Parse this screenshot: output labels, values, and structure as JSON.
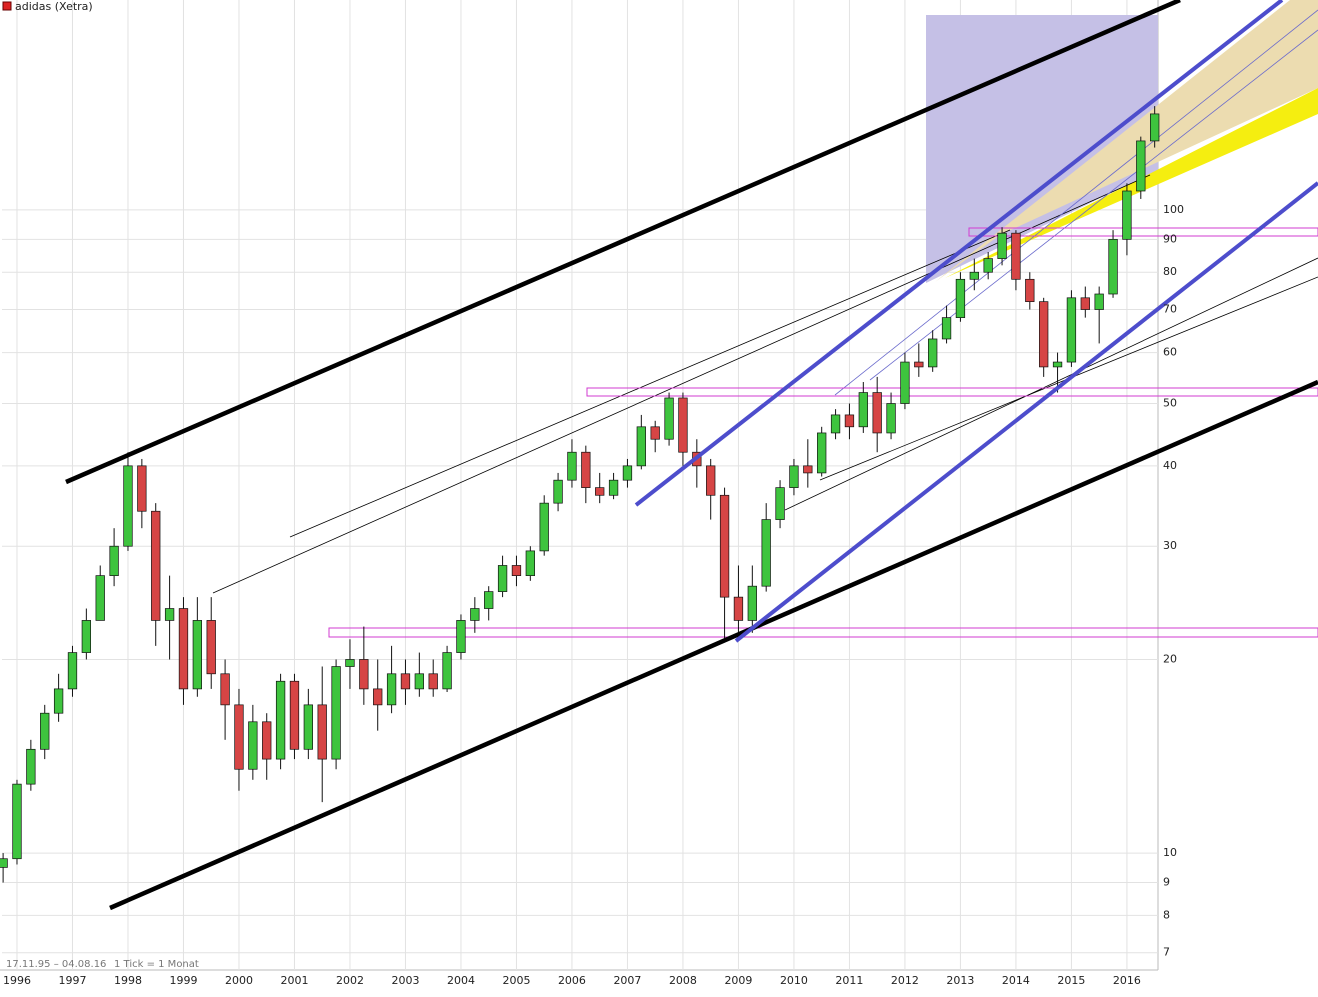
{
  "header": {
    "title": "adidas (Xetra)"
  },
  "footer": {
    "range": "17.11.95 – 04.08.16",
    "interval": "1 Tick = 1 Monat"
  },
  "chart_data": {
    "type": "candlestick",
    "x": [
      1995.75,
      1996.0,
      1996.25,
      1996.5,
      1996.75,
      1997.0,
      1997.25,
      1997.5,
      1997.75,
      1998.0,
      1998.25,
      1998.5,
      1998.75,
      1999.0,
      1999.25,
      1999.5,
      1999.75,
      2000.0,
      2000.25,
      2000.5,
      2000.75,
      2001.0,
      2001.25,
      2001.5,
      2001.75,
      2002.0,
      2002.25,
      2002.5,
      2002.75,
      2003.0,
      2003.25,
      2003.5,
      2003.75,
      2004.0,
      2004.25,
      2004.5,
      2004.75,
      2005.0,
      2005.25,
      2005.5,
      2005.75,
      2006.0,
      2006.25,
      2006.5,
      2006.75,
      2007.0,
      2007.25,
      2007.5,
      2007.75,
      2008.0,
      2008.25,
      2008.5,
      2008.75,
      2009.0,
      2009.25,
      2009.5,
      2009.75,
      2010.0,
      2010.25,
      2010.5,
      2010.75,
      2011.0,
      2011.25,
      2011.5,
      2011.75,
      2012.0,
      2012.25,
      2012.5,
      2012.75,
      2013.0,
      2013.25,
      2013.5,
      2013.75,
      2014.0,
      2014.25,
      2014.5,
      2014.75,
      2015.0,
      2015.25,
      2015.5,
      2015.75,
      2016.0,
      2016.25,
      2016.5
    ],
    "open": [
      9.5,
      9.8,
      12.8,
      14.5,
      16.5,
      18,
      20.5,
      23,
      27,
      30,
      40,
      34,
      23,
      24,
      18,
      23,
      19,
      17,
      13.5,
      16,
      14,
      18.5,
      14.5,
      17,
      14,
      19.5,
      20,
      18,
      17,
      19,
      18,
      19,
      18,
      20.5,
      23,
      24,
      25.5,
      28,
      27,
      29.5,
      35,
      38,
      42,
      37,
      36,
      38,
      40,
      46,
      44,
      51,
      42,
      40,
      36,
      25,
      23,
      26,
      33,
      37,
      40,
      39,
      45,
      48,
      46,
      52,
      45,
      50,
      58,
      57,
      63,
      68,
      78,
      80,
      84,
      92,
      78,
      72,
      57,
      58,
      73,
      70,
      74,
      90,
      107,
      128
    ],
    "high": [
      10,
      13,
      15,
      17,
      19,
      21,
      24,
      28,
      32,
      42,
      41,
      35,
      27,
      25,
      25,
      25,
      20,
      18,
      17,
      16.5,
      19,
      19,
      18,
      19.5,
      20,
      21.5,
      22.5,
      20,
      21,
      20,
      20.5,
      20,
      21,
      23.5,
      25,
      26,
      29,
      29,
      30,
      36,
      39,
      44,
      43,
      39,
      39,
      41,
      48,
      47,
      52,
      52,
      44,
      41,
      37,
      28,
      28,
      35,
      38,
      41,
      44,
      46,
      49,
      50,
      54,
      55,
      52,
      60,
      62,
      65,
      71,
      80,
      84,
      86,
      94,
      93,
      80,
      73,
      60,
      75,
      76,
      76,
      93,
      110,
      130,
      145
    ],
    "low": [
      9,
      9.6,
      12.5,
      14,
      16,
      17.5,
      20,
      23,
      26,
      29.5,
      32,
      21,
      20,
      17,
      17.5,
      18,
      15,
      12.5,
      13,
      13,
      13.5,
      14,
      14,
      12,
      13.5,
      18,
      17,
      15.5,
      16.5,
      17,
      17.5,
      17.5,
      17.8,
      20,
      22,
      23,
      25,
      26,
      26.5,
      29,
      34,
      37,
      35,
      35,
      35.5,
      37,
      39.5,
      42,
      43,
      40,
      37,
      33,
      21.5,
      21.7,
      22,
      25.5,
      32,
      36,
      37,
      38.5,
      44,
      44,
      45,
      42,
      44,
      49,
      55,
      56,
      62,
      67,
      75,
      78,
      82,
      75,
      70,
      55,
      52,
      57,
      68,
      62,
      73,
      85,
      104,
      125
    ],
    "close": [
      9.8,
      12.8,
      14.5,
      16.5,
      18,
      20.5,
      23,
      27,
      30,
      40,
      34,
      23,
      24,
      18,
      23,
      19,
      17,
      13.5,
      16,
      14,
      18.5,
      14.5,
      17,
      14,
      19.5,
      20,
      18,
      17,
      19,
      18,
      19,
      18,
      20.5,
      23,
      24,
      25.5,
      28,
      27,
      29.5,
      35,
      38,
      42,
      37,
      36,
      38,
      40,
      46,
      44,
      51,
      42,
      40,
      36,
      25,
      23,
      26,
      33,
      37,
      40,
      39,
      45,
      48,
      46,
      52,
      45,
      50,
      58,
      57,
      63,
      68,
      78,
      80,
      84,
      92,
      78,
      72,
      57,
      58,
      73,
      70,
      74,
      90,
      107,
      128,
      141
    ],
    "up_color": "#3ec43e",
    "down_color": "#d64545",
    "log_scale": true,
    "grid": true,
    "xlim": [
      1995.73,
      2016.56
    ],
    "xticks": [
      1996,
      1997,
      1998,
      1999,
      2000,
      2001,
      2002,
      2003,
      2004,
      2005,
      2006,
      2007,
      2008,
      2009,
      2010,
      2011,
      2012,
      2013,
      2014,
      2015,
      2016
    ],
    "ylim": [
      6.58,
      212
    ],
    "yticks": [
      7,
      8,
      9,
      10,
      20,
      30,
      40,
      50,
      60,
      70,
      80,
      90,
      100
    ]
  }
}
